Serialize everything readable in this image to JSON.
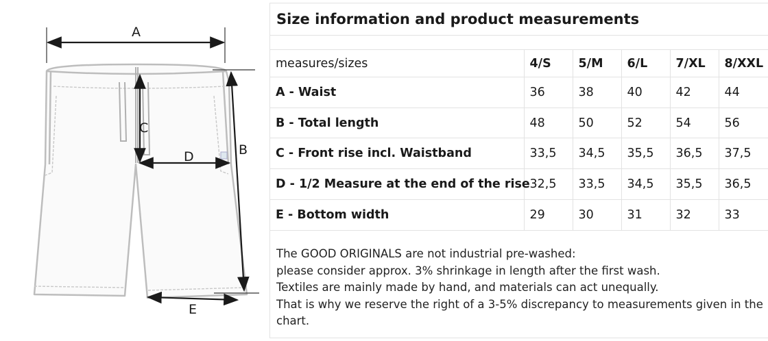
{
  "diagram": {
    "labels": {
      "a": "A",
      "b": "B",
      "c": "C",
      "d": "D",
      "e": "E"
    }
  },
  "table": {
    "title": "Size information and product measurements",
    "header": {
      "row_label": "measures/sizes",
      "sizes": [
        "4/S",
        "5/M",
        "6/L",
        "7/XL",
        "8/XXL"
      ]
    },
    "rows": [
      {
        "label": "A - Waist",
        "values": [
          "36",
          "38",
          "40",
          "42",
          "44"
        ]
      },
      {
        "label": "B - Total length",
        "values": [
          "48",
          "50",
          "52",
          "54",
          "56"
        ]
      },
      {
        "label": "C - Front rise incl. Waistband",
        "values": [
          "33,5",
          "34,5",
          "35,5",
          "36,5",
          "37,5"
        ]
      },
      {
        "label": "D - 1/2 Measure at the end of the rise",
        "values": [
          "32,5",
          "33,5",
          "34,5",
          "35,5",
          "36,5"
        ]
      },
      {
        "label": "E - Bottom width",
        "values": [
          "29",
          "30",
          "31",
          "32",
          "33"
        ]
      }
    ]
  },
  "notes": {
    "line1": "The GOOD ORIGINALS are not industrial pre-washed:",
    "line2": "please consider approx. 3% shrinkage in length after the first wash.",
    "line3": "Textiles are mainly made by hand, and materials can act unequally.",
    "line4": "That is why we reserve the right of a 3-5% discrepancy to measurements given in the chart."
  }
}
